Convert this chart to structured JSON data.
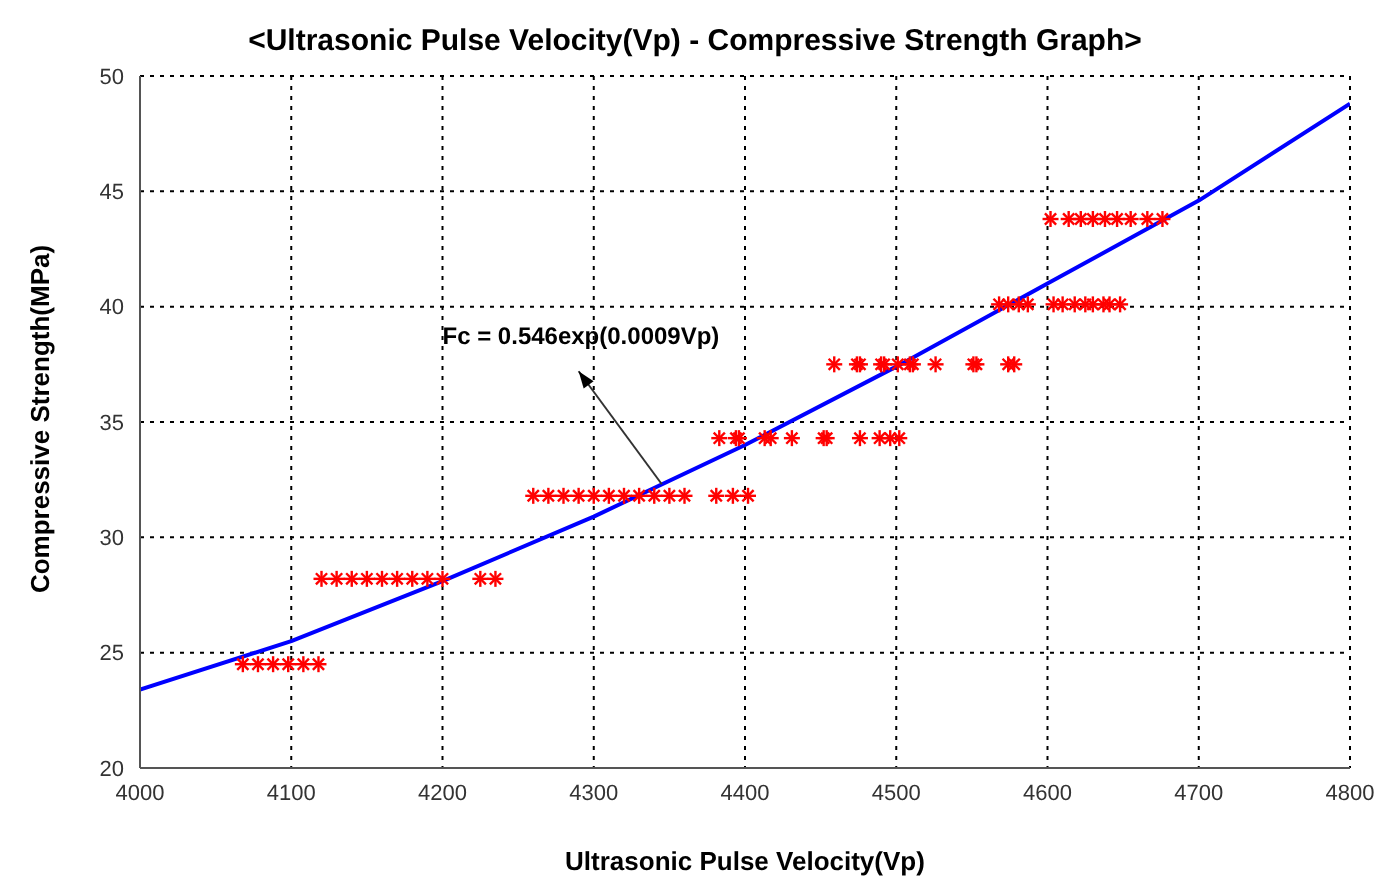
{
  "chart_data": {
    "type": "scatter",
    "title": "<Ultrasonic Pulse Velocity(Vp) - Compressive Strength Graph>",
    "xlabel": "Ultrasonic Pulse Velocity(Vp)",
    "ylabel": "Compressive Strength(MPa)",
    "annotations": [
      {
        "text": "Fc = 0.546exp(0.0009Vp)",
        "x": 4345,
        "y": 32.3
      }
    ],
    "xlim": [
      4000,
      4800
    ],
    "xticks": [
      4000,
      4100,
      4200,
      4300,
      4400,
      4500,
      4600,
      4700,
      4800
    ],
    "ylim": [
      20,
      50
    ],
    "yticks": [
      20,
      25,
      30,
      35,
      40,
      45,
      50
    ],
    "grid": true,
    "legend": false,
    "series": [
      {
        "color": "#ff0000",
        "marker": "cross",
        "x": [
          4068,
          4078,
          4088,
          4098,
          4108,
          4118,
          4120,
          4130,
          4140,
          4150,
          4160,
          4170,
          4180,
          4190,
          4200,
          4225,
          4235,
          4260,
          4270,
          4280,
          4290,
          4300,
          4310,
          4320,
          4330,
          4340,
          4350,
          4360,
          4381,
          4392,
          4402,
          4383,
          4394,
          4396,
          4413,
          4417,
          4431,
          4452,
          4454,
          4476,
          4489,
          4496,
          4502,
          4459,
          4474,
          4476,
          4490,
          4492,
          4501,
          4509,
          4511,
          4526,
          4551,
          4553,
          4574,
          4578,
          4568,
          4574,
          4581,
          4587,
          4604,
          4610,
          4618,
          4625,
          4630,
          4637,
          4641,
          4648,
          4602,
          4614,
          4622,
          4630,
          4638,
          4646,
          4655,
          4666,
          4676
        ],
        "values": [
          24.5,
          24.5,
          24.5,
          24.5,
          24.5,
          24.5,
          28.2,
          28.2,
          28.2,
          28.2,
          28.2,
          28.2,
          28.2,
          28.2,
          28.2,
          28.2,
          28.2,
          31.8,
          31.8,
          31.8,
          31.8,
          31.8,
          31.8,
          31.8,
          31.8,
          31.8,
          31.8,
          31.8,
          31.8,
          31.8,
          31.8,
          34.3,
          34.3,
          34.3,
          34.3,
          34.3,
          34.3,
          34.3,
          34.3,
          34.3,
          34.3,
          34.3,
          34.3,
          37.5,
          37.5,
          37.5,
          37.5,
          37.5,
          37.5,
          37.5,
          37.5,
          37.5,
          37.5,
          37.5,
          37.5,
          37.5,
          40.1,
          40.1,
          40.1,
          40.1,
          40.1,
          40.1,
          40.1,
          40.1,
          40.1,
          40.1,
          40.1,
          40.1,
          43.8,
          43.8,
          43.8,
          43.8,
          43.8,
          43.8,
          43.8,
          43.8,
          43.8
        ]
      },
      {
        "type": "line",
        "color": "#0000ff",
        "marker": "none",
        "x": [
          4000,
          4100,
          4200,
          4300,
          4400,
          4500,
          4600,
          4700,
          4800
        ],
        "values": [
          23.4,
          25.5,
          28.1,
          30.9,
          34.0,
          37.4,
          41.0,
          44.6,
          48.8
        ]
      }
    ]
  }
}
